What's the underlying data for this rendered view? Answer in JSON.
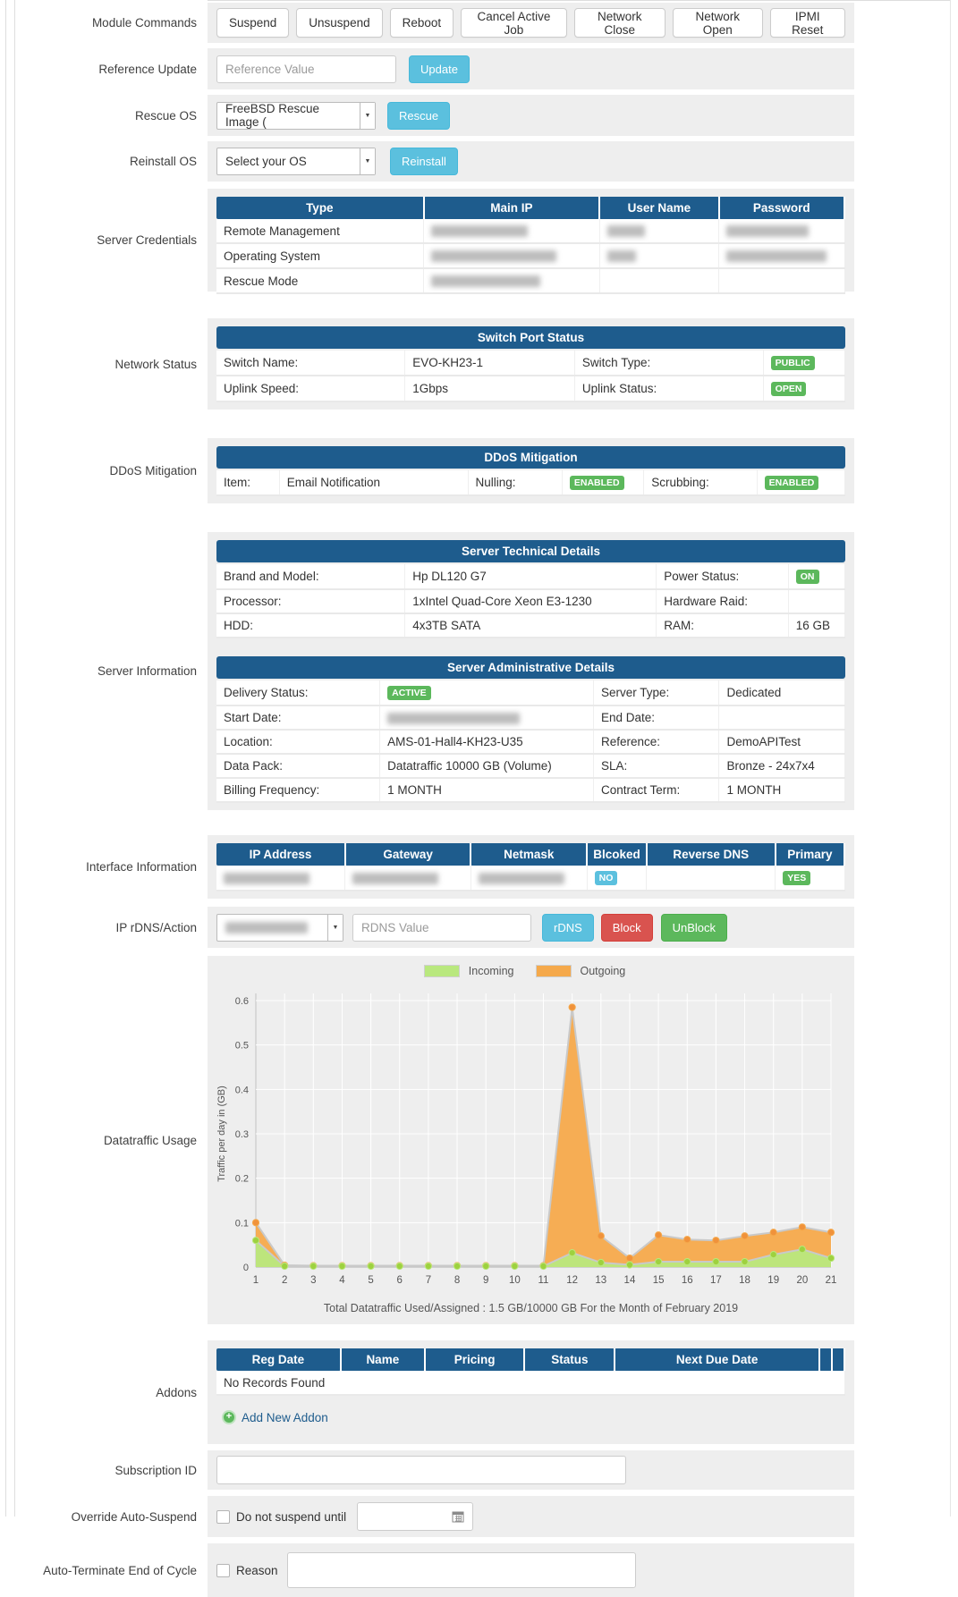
{
  "colors": {
    "header_blue": "#1e5c8d",
    "badge_green": "#5cb85c",
    "badge_cyan": "#5bc0de",
    "btn_info": "#5bc0de",
    "btn_danger": "#d9534f",
    "btn_success": "#5cb85c",
    "band_gray": "#eeeeee"
  },
  "module_commands": {
    "label": "Module Commands",
    "buttons": [
      "Suspend",
      "Unsuspend",
      "Reboot",
      "Cancel Active Job",
      "Network Close",
      "Network Open",
      "IPMI Reset"
    ]
  },
  "reference_update": {
    "label": "Reference Update",
    "placeholder": "Reference Value",
    "button": "Update"
  },
  "rescue_os": {
    "label": "Rescue OS",
    "selected": "FreeBSD Rescue Image (",
    "button": "Rescue"
  },
  "reinstall_os": {
    "label": "Reinstall OS",
    "selected": "Select your OS",
    "button": "Reinstall"
  },
  "server_credentials": {
    "label": "Server Credentials",
    "headers": [
      "Type",
      "Main IP",
      "User Name",
      "Password"
    ],
    "rows": [
      {
        "type": "Remote Management"
      },
      {
        "type": "Operating System"
      },
      {
        "type": "Rescue Mode"
      }
    ]
  },
  "network_status": {
    "label": "Network Status",
    "title": "Switch Port Status",
    "switch_name_label": "Switch Name:",
    "switch_name": "EVO-KH23-1",
    "switch_type_label": "Switch Type:",
    "switch_type_badge": "PUBLIC",
    "uplink_speed_label": "Uplink Speed:",
    "uplink_speed": "1Gbps",
    "uplink_status_label": "Uplink Status:",
    "uplink_status_badge": "OPEN"
  },
  "ddos": {
    "label": "DDoS Mitigation",
    "title": "DDoS Mitigation",
    "item_label": "Item:",
    "item": "Email Notification",
    "nulling_label": "Nulling:",
    "nulling_badge": "ENABLED",
    "scrubbing_label": "Scrubbing:",
    "scrubbing_badge": "ENABLED"
  },
  "server_info": {
    "label": "Server Information",
    "tech": {
      "title": "Server Technical Details",
      "brand_label": "Brand and Model:",
      "brand": "Hp DL120 G7",
      "power_label": "Power Status:",
      "power_badge": "ON",
      "cpu_label": "Processor:",
      "cpu": "1xIntel Quad-Core Xeon E3-1230",
      "raid_label": "Hardware Raid:",
      "raid": "",
      "hdd_label": "HDD:",
      "hdd": "4x3TB SATA",
      "ram_label": "RAM:",
      "ram": "16 GB"
    },
    "admin": {
      "title": "Server Administrative Details",
      "delivery_label": "Delivery Status:",
      "delivery_badge": "ACTIVE",
      "type_label": "Server Type:",
      "type": "Dedicated",
      "start_label": "Start Date:",
      "end_label": "End Date:",
      "end": "",
      "location_label": "Location:",
      "location": "AMS-01-Hall4-KH23-U35",
      "reference_label": "Reference:",
      "reference": "DemoAPITest",
      "datapack_label": "Data Pack:",
      "datapack": "Datatraffic 10000 GB (Volume)",
      "sla_label": "SLA:",
      "sla": "Bronze - 24x7x4",
      "billing_label": "Billing Frequency:",
      "billing": "1 MONTH",
      "contract_label": "Contract Term:",
      "contract": "1 MONTH"
    }
  },
  "interface_info": {
    "label": "Interface Information",
    "headers": [
      "IP Address",
      "Gateway",
      "Netmask",
      "Blcoked",
      "Reverse DNS",
      "Primary"
    ],
    "blocked_badge": "NO",
    "primary_badge": "YES"
  },
  "rdns": {
    "label": "IP rDNS/Action",
    "placeholder": "RDNS Value",
    "rdns_button": "rDNS",
    "block_button": "Block",
    "unblock_button": "UnBlock"
  },
  "datatraffic": {
    "label": "Datatraffic Usage"
  },
  "chart_data": {
    "type": "area",
    "x": [
      1,
      2,
      3,
      4,
      5,
      6,
      7,
      8,
      9,
      10,
      11,
      12,
      13,
      14,
      15,
      16,
      17,
      18,
      19,
      20,
      21
    ],
    "series": [
      {
        "name": "Incoming",
        "color": "#b9e87e",
        "point_color": "#9ed13f",
        "values": [
          0.06,
          0.002,
          0.002,
          0.002,
          0.002,
          0.002,
          0.002,
          0.002,
          0.002,
          0.002,
          0.002,
          0.032,
          0.01,
          0.005,
          0.012,
          0.012,
          0.012,
          0.012,
          0.028,
          0.04,
          0.02
        ]
      },
      {
        "name": "Outgoing",
        "color": "#f5a94b",
        "point_color": "#f0923b",
        "values": [
          0.1,
          0.004,
          0.003,
          0.003,
          0.003,
          0.003,
          0.003,
          0.003,
          0.003,
          0.003,
          0.003,
          0.585,
          0.07,
          0.02,
          0.072,
          0.062,
          0.06,
          0.07,
          0.078,
          0.09,
          0.078
        ]
      }
    ],
    "ylabel": "Traffic per day in (GB)",
    "ylim": [
      0,
      0.6
    ],
    "yticks": [
      0,
      0.1,
      0.2,
      0.3,
      0.4,
      0.5,
      0.6
    ],
    "grid": true,
    "legend_position": "top",
    "caption": "Total Datatraffic Used/Assigned : 1.5 GB/10000 GB For the Month of February 2019"
  },
  "addons": {
    "label": "Addons",
    "headers": [
      "Reg Date",
      "Name",
      "Pricing",
      "Status",
      "Next Due Date",
      "",
      ""
    ],
    "empty_text": "No Records Found",
    "add_link": "Add New Addon"
  },
  "subscription": {
    "label": "Subscription ID"
  },
  "override_suspend": {
    "label": "Override Auto-Suspend",
    "checkbox_label": "Do not suspend until"
  },
  "auto_terminate": {
    "label": "Auto-Terminate End of Cycle",
    "checkbox_label": "Reason"
  }
}
